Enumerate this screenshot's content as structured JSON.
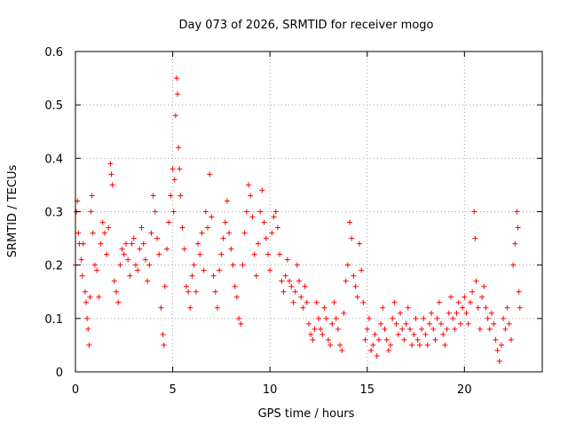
{
  "chart_data": {
    "type": "scatter",
    "title": "Day 073 of 2026, SRMTID for receiver mogo",
    "xlabel": "GPS time / hours",
    "ylabel": "SRMTID / TECUs",
    "xlim": [
      0,
      24
    ],
    "ylim": [
      0,
      0.6
    ],
    "grid": true,
    "marker": "+",
    "color": "#ff0000",
    "xticks": [
      {
        "value": 0,
        "label": "0"
      },
      {
        "value": 5,
        "label": "5"
      },
      {
        "value": 10,
        "label": "10"
      },
      {
        "value": 15,
        "label": "15"
      },
      {
        "value": 20,
        "label": "20"
      }
    ],
    "yticks": [
      {
        "value": 0,
        "label": "0"
      },
      {
        "value": 0.1,
        "label": "0.1"
      },
      {
        "value": 0.2,
        "label": "0.2"
      },
      {
        "value": 0.3,
        "label": "0.3"
      },
      {
        "value": 0.4,
        "label": "0.4"
      },
      {
        "value": 0.5,
        "label": "0.5"
      },
      {
        "value": 0.6,
        "label": "0.6"
      }
    ],
    "series": [
      {
        "name": "SRMTID",
        "points": [
          [
            0.0,
            0.2
          ],
          [
            0.05,
            0.3
          ],
          [
            0.1,
            0.32
          ],
          [
            0.15,
            0.26
          ],
          [
            0.2,
            0.24
          ],
          [
            0.3,
            0.21
          ],
          [
            0.35,
            0.18
          ],
          [
            0.4,
            0.24
          ],
          [
            0.5,
            0.15
          ],
          [
            0.55,
            0.13
          ],
          [
            0.6,
            0.1
          ],
          [
            0.65,
            0.08
          ],
          [
            0.7,
            0.05
          ],
          [
            0.75,
            0.14
          ],
          [
            0.8,
            0.3
          ],
          [
            0.85,
            0.33
          ],
          [
            0.9,
            0.26
          ],
          [
            1.0,
            0.2
          ],
          [
            1.1,
            0.19
          ],
          [
            1.2,
            0.14
          ],
          [
            1.3,
            0.24
          ],
          [
            1.4,
            0.28
          ],
          [
            1.5,
            0.26
          ],
          [
            1.6,
            0.22
          ],
          [
            1.7,
            0.27
          ],
          [
            1.8,
            0.39
          ],
          [
            1.85,
            0.37
          ],
          [
            1.9,
            0.35
          ],
          [
            2.0,
            0.17
          ],
          [
            2.1,
            0.15
          ],
          [
            2.2,
            0.13
          ],
          [
            2.3,
            0.2
          ],
          [
            2.4,
            0.23
          ],
          [
            2.5,
            0.22
          ],
          [
            2.6,
            0.24
          ],
          [
            2.7,
            0.21
          ],
          [
            2.8,
            0.18
          ],
          [
            2.9,
            0.24
          ],
          [
            3.0,
            0.25
          ],
          [
            3.1,
            0.2
          ],
          [
            3.2,
            0.19
          ],
          [
            3.3,
            0.23
          ],
          [
            3.4,
            0.27
          ],
          [
            3.5,
            0.24
          ],
          [
            3.6,
            0.21
          ],
          [
            3.7,
            0.17
          ],
          [
            3.8,
            0.2
          ],
          [
            3.9,
            0.26
          ],
          [
            4.0,
            0.33
          ],
          [
            4.1,
            0.3
          ],
          [
            4.2,
            0.25
          ],
          [
            4.3,
            0.22
          ],
          [
            4.4,
            0.12
          ],
          [
            4.5,
            0.07
          ],
          [
            4.55,
            0.05
          ],
          [
            4.6,
            0.16
          ],
          [
            4.7,
            0.23
          ],
          [
            4.8,
            0.28
          ],
          [
            4.9,
            0.33
          ],
          [
            5.0,
            0.38
          ],
          [
            5.05,
            0.3
          ],
          [
            5.1,
            0.36
          ],
          [
            5.15,
            0.48
          ],
          [
            5.2,
            0.55
          ],
          [
            5.25,
            0.52
          ],
          [
            5.3,
            0.42
          ],
          [
            5.35,
            0.38
          ],
          [
            5.4,
            0.33
          ],
          [
            5.5,
            0.27
          ],
          [
            5.6,
            0.23
          ],
          [
            5.7,
            0.16
          ],
          [
            5.8,
            0.15
          ],
          [
            5.9,
            0.12
          ],
          [
            6.0,
            0.18
          ],
          [
            6.1,
            0.2
          ],
          [
            6.2,
            0.15
          ],
          [
            6.3,
            0.24
          ],
          [
            6.4,
            0.22
          ],
          [
            6.5,
            0.26
          ],
          [
            6.6,
            0.19
          ],
          [
            6.7,
            0.3
          ],
          [
            6.8,
            0.27
          ],
          [
            6.9,
            0.37
          ],
          [
            7.0,
            0.29
          ],
          [
            7.1,
            0.18
          ],
          [
            7.2,
            0.15
          ],
          [
            7.3,
            0.12
          ],
          [
            7.4,
            0.19
          ],
          [
            7.5,
            0.22
          ],
          [
            7.6,
            0.25
          ],
          [
            7.7,
            0.28
          ],
          [
            7.8,
            0.32
          ],
          [
            7.9,
            0.26
          ],
          [
            8.0,
            0.23
          ],
          [
            8.1,
            0.2
          ],
          [
            8.2,
            0.16
          ],
          [
            8.3,
            0.14
          ],
          [
            8.4,
            0.1
          ],
          [
            8.5,
            0.09
          ],
          [
            8.6,
            0.2
          ],
          [
            8.7,
            0.26
          ],
          [
            8.8,
            0.3
          ],
          [
            8.9,
            0.35
          ],
          [
            9.0,
            0.33
          ],
          [
            9.1,
            0.29
          ],
          [
            9.2,
            0.22
          ],
          [
            9.3,
            0.18
          ],
          [
            9.4,
            0.24
          ],
          [
            9.5,
            0.3
          ],
          [
            9.6,
            0.34
          ],
          [
            9.7,
            0.28
          ],
          [
            9.8,
            0.25
          ],
          [
            9.9,
            0.22
          ],
          [
            10.0,
            0.19
          ],
          [
            10.1,
            0.26
          ],
          [
            10.2,
            0.29
          ],
          [
            10.3,
            0.3
          ],
          [
            10.4,
            0.27
          ],
          [
            10.5,
            0.22
          ],
          [
            10.6,
            0.17
          ],
          [
            10.7,
            0.15
          ],
          [
            10.8,
            0.18
          ],
          [
            10.9,
            0.21
          ],
          [
            11.0,
            0.17
          ],
          [
            11.1,
            0.16
          ],
          [
            11.2,
            0.13
          ],
          [
            11.3,
            0.15
          ],
          [
            11.4,
            0.2
          ],
          [
            11.5,
            0.17
          ],
          [
            11.6,
            0.14
          ],
          [
            11.7,
            0.12
          ],
          [
            11.8,
            0.16
          ],
          [
            11.9,
            0.13
          ],
          [
            12.0,
            0.09
          ],
          [
            12.1,
            0.07
          ],
          [
            12.2,
            0.06
          ],
          [
            12.3,
            0.08
          ],
          [
            12.4,
            0.13
          ],
          [
            12.5,
            0.1
          ],
          [
            12.6,
            0.08
          ],
          [
            12.7,
            0.07
          ],
          [
            12.8,
            0.12
          ],
          [
            12.9,
            0.1
          ],
          [
            13.0,
            0.06
          ],
          [
            13.1,
            0.05
          ],
          [
            13.2,
            0.09
          ],
          [
            13.3,
            0.13
          ],
          [
            13.4,
            0.1
          ],
          [
            13.5,
            0.08
          ],
          [
            13.6,
            0.05
          ],
          [
            13.7,
            0.04
          ],
          [
            13.8,
            0.11
          ],
          [
            13.9,
            0.17
          ],
          [
            14.0,
            0.2
          ],
          [
            14.1,
            0.28
          ],
          [
            14.2,
            0.25
          ],
          [
            14.3,
            0.18
          ],
          [
            14.4,
            0.16
          ],
          [
            14.5,
            0.14
          ],
          [
            14.6,
            0.24
          ],
          [
            14.7,
            0.19
          ],
          [
            14.8,
            0.13
          ],
          [
            14.9,
            0.06
          ],
          [
            15.0,
            0.08
          ],
          [
            15.1,
            0.1
          ],
          [
            15.2,
            0.04
          ],
          [
            15.3,
            0.05
          ],
          [
            15.4,
            0.07
          ],
          [
            15.5,
            0.03
          ],
          [
            15.6,
            0.06
          ],
          [
            15.7,
            0.09
          ],
          [
            15.8,
            0.12
          ],
          [
            15.9,
            0.08
          ],
          [
            16.0,
            0.06
          ],
          [
            16.1,
            0.04
          ],
          [
            16.2,
            0.05
          ],
          [
            16.3,
            0.1
          ],
          [
            16.4,
            0.13
          ],
          [
            16.5,
            0.09
          ],
          [
            16.6,
            0.07
          ],
          [
            16.7,
            0.11
          ],
          [
            16.8,
            0.08
          ],
          [
            16.9,
            0.06
          ],
          [
            17.0,
            0.09
          ],
          [
            17.1,
            0.12
          ],
          [
            17.2,
            0.08
          ],
          [
            17.3,
            0.05
          ],
          [
            17.4,
            0.07
          ],
          [
            17.5,
            0.1
          ],
          [
            17.6,
            0.06
          ],
          [
            17.7,
            0.05
          ],
          [
            17.8,
            0.08
          ],
          [
            17.9,
            0.1
          ],
          [
            18.0,
            0.07
          ],
          [
            18.1,
            0.05
          ],
          [
            18.2,
            0.09
          ],
          [
            18.3,
            0.11
          ],
          [
            18.4,
            0.08
          ],
          [
            18.5,
            0.06
          ],
          [
            18.6,
            0.1
          ],
          [
            18.7,
            0.13
          ],
          [
            18.8,
            0.09
          ],
          [
            18.9,
            0.07
          ],
          [
            19.0,
            0.05
          ],
          [
            19.1,
            0.08
          ],
          [
            19.2,
            0.11
          ],
          [
            19.3,
            0.14
          ],
          [
            19.4,
            0.1
          ],
          [
            19.5,
            0.08
          ],
          [
            19.6,
            0.11
          ],
          [
            19.7,
            0.13
          ],
          [
            19.8,
            0.09
          ],
          [
            19.9,
            0.12
          ],
          [
            20.0,
            0.14
          ],
          [
            20.1,
            0.11
          ],
          [
            20.2,
            0.09
          ],
          [
            20.3,
            0.13
          ],
          [
            20.4,
            0.15
          ],
          [
            20.5,
            0.3
          ],
          [
            20.55,
            0.25
          ],
          [
            20.6,
            0.17
          ],
          [
            20.7,
            0.12
          ],
          [
            20.8,
            0.08
          ],
          [
            20.9,
            0.14
          ],
          [
            21.0,
            0.16
          ],
          [
            21.1,
            0.12
          ],
          [
            21.2,
            0.1
          ],
          [
            21.3,
            0.08
          ],
          [
            21.4,
            0.11
          ],
          [
            21.5,
            0.09
          ],
          [
            21.6,
            0.06
          ],
          [
            21.7,
            0.04
          ],
          [
            21.8,
            0.02
          ],
          [
            21.9,
            0.05
          ],
          [
            22.0,
            0.1
          ],
          [
            22.1,
            0.08
          ],
          [
            22.2,
            0.12
          ],
          [
            22.3,
            0.09
          ],
          [
            22.4,
            0.06
          ],
          [
            22.5,
            0.2
          ],
          [
            22.6,
            0.24
          ],
          [
            22.7,
            0.3
          ],
          [
            22.75,
            0.27
          ],
          [
            22.8,
            0.15
          ],
          [
            22.85,
            0.12
          ]
        ]
      }
    ]
  }
}
